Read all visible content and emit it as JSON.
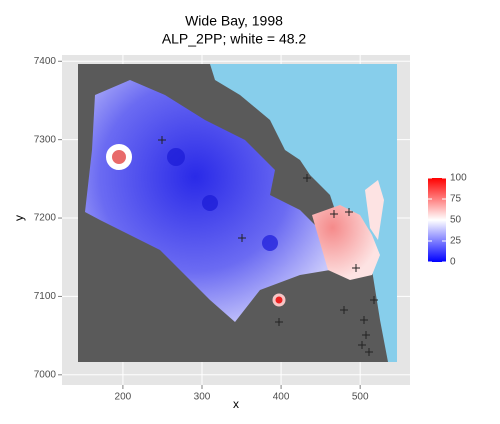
{
  "chart_data": {
    "type": "raster",
    "title": "Wide Bay, 1998",
    "subtitle": "ALP_2PP; white = 48.2",
    "x_label": "x",
    "y_label": "y",
    "xlim": [
      123,
      563
    ],
    "ylim": [
      6987,
      7408
    ],
    "xticks": [
      200,
      300,
      400,
      500
    ],
    "yticks": [
      7000,
      7100,
      7200,
      7300,
      7400
    ],
    "grid": true,
    "legend": {
      "limits": [
        0,
        100
      ],
      "ticks": [
        0,
        25,
        50,
        75,
        100
      ],
      "colors": [
        "#0000ff",
        "#ffffff",
        "#ff0000"
      ]
    }
  }
}
